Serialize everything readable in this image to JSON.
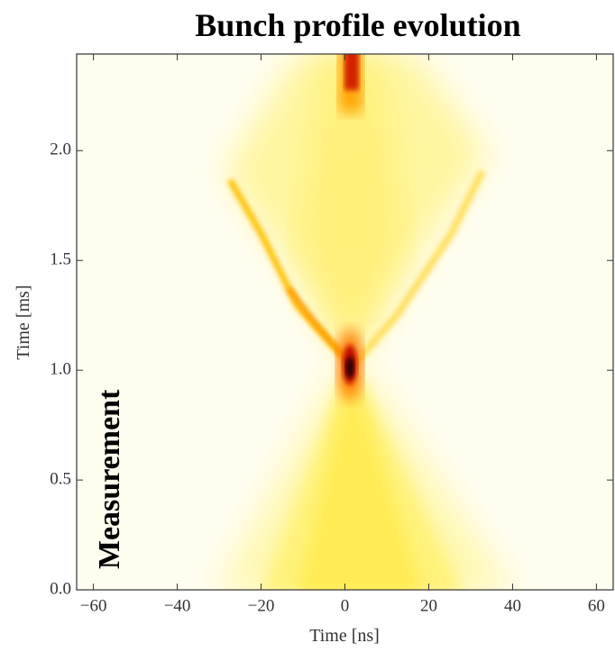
{
  "chart_data": {
    "type": "density",
    "title": "Bunch profile evolution",
    "xlabel": "Time [ns]",
    "ylabel": "Time [ms]",
    "annotation": "Measurement",
    "xlim": [
      -64,
      64
    ],
    "ylim": [
      0,
      2.44
    ],
    "xticks": [
      {
        "value": -60,
        "label": "−60"
      },
      {
        "value": -40,
        "label": "−40"
      },
      {
        "value": -20,
        "label": "−20"
      },
      0,
      20,
      40,
      60
    ],
    "yticks": [
      {
        "value": 0,
        "label": "0.0"
      },
      {
        "value": 0.5,
        "label": "0.5"
      },
      {
        "value": 1,
        "label": "1.0"
      },
      {
        "value": 1.5,
        "label": "1.5"
      },
      {
        "value": 2,
        "label": "2.0"
      }
    ]
  }
}
